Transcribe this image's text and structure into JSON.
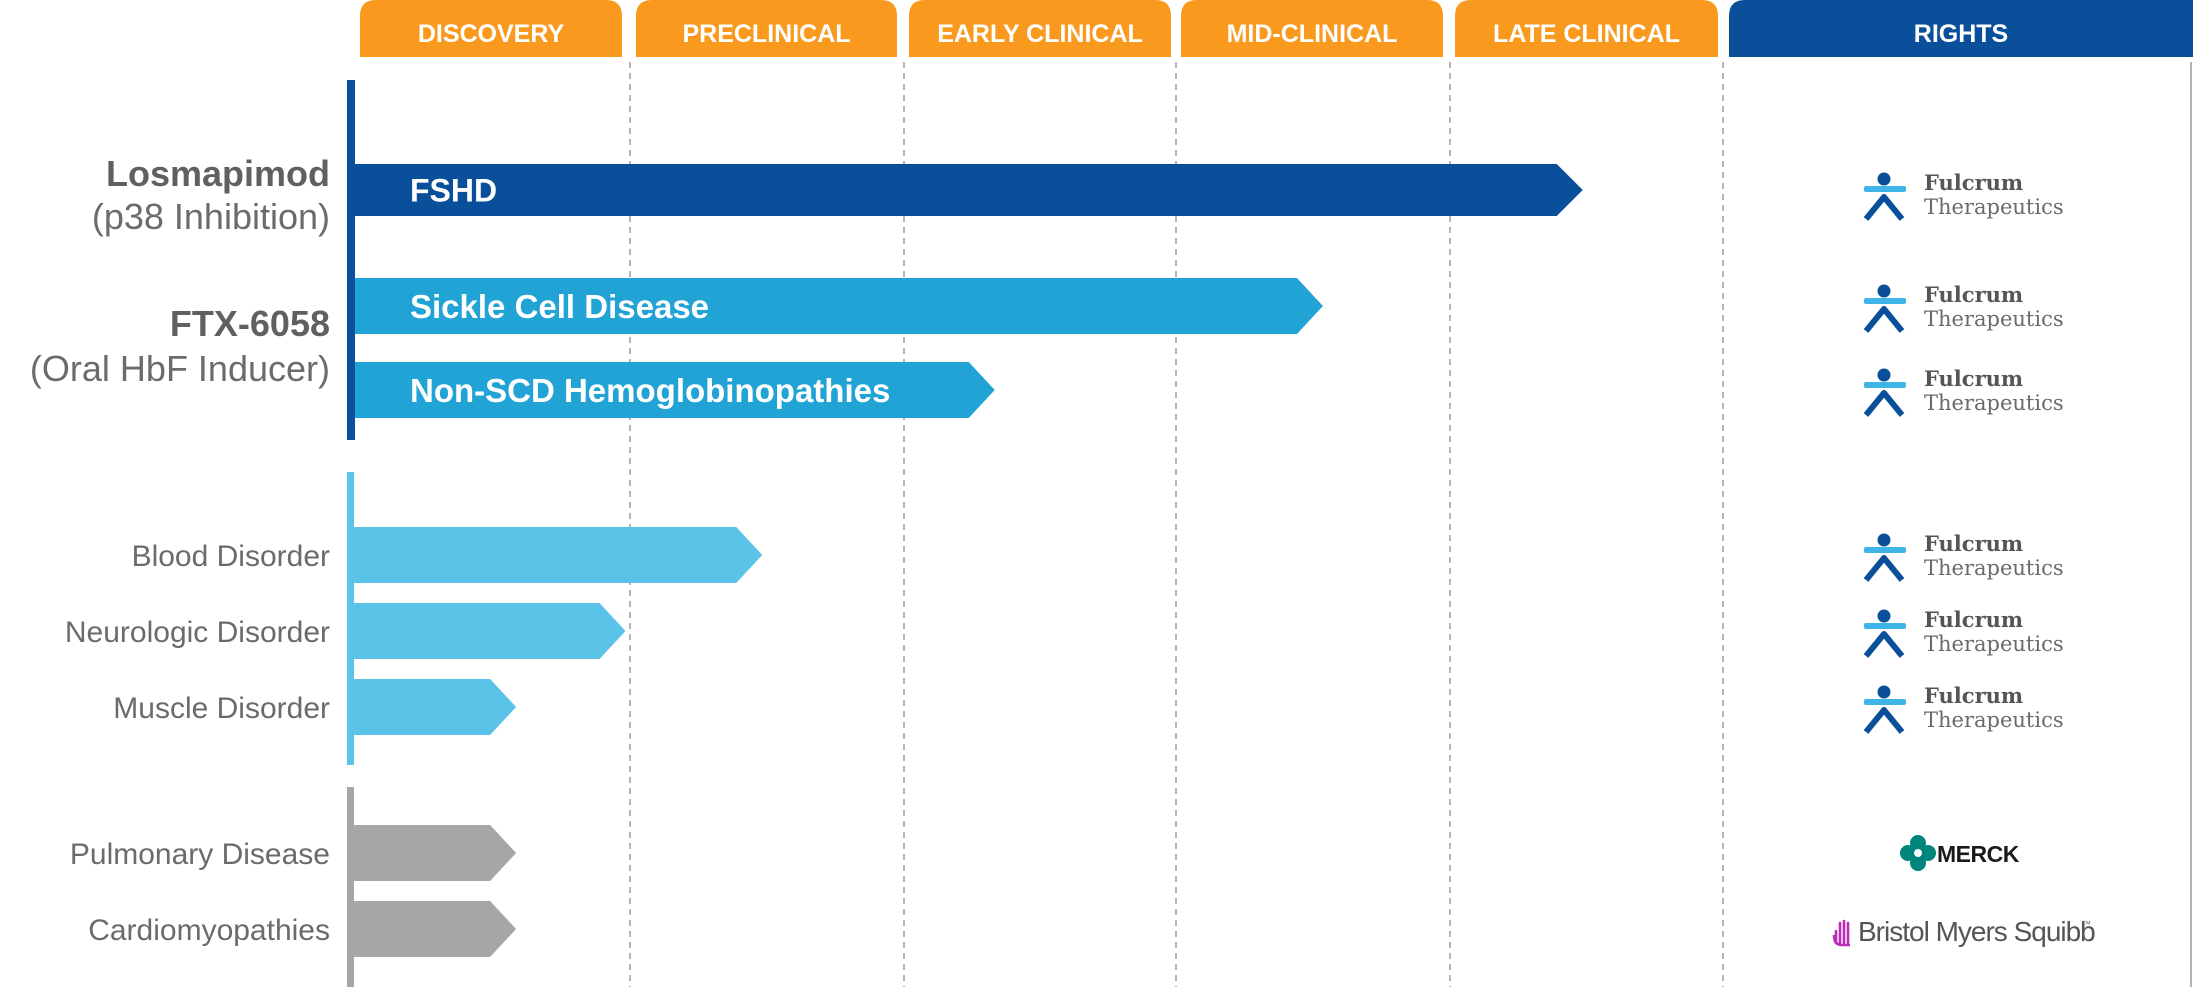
{
  "colors": {
    "phase_header": "#F99A1E",
    "rights_header": "#0A4F9A",
    "lead_bar": "#0A4F9A",
    "ftx_bar": "#22A3D6",
    "pipeline_bar": "#5BC2E8",
    "partnered_bar": "#A6A6A6",
    "label_text": "#6B6B6B",
    "fulcrum_dark": "#0A4F9A",
    "fulcrum_light": "#3FB4E6",
    "merck_teal": "#00857C",
    "bms_magenta": "#BE2BBB"
  },
  "chart_data": {
    "type": "bar",
    "orientation": "horizontal",
    "stages": [
      "DISCOVERY",
      "PRECLINICAL",
      "EARLY CLINICAL",
      "MID-CLINICAL",
      "LATE CLINICAL"
    ],
    "rights_header": "RIGHTS",
    "xlim": [
      0,
      5
    ],
    "groups": [
      {
        "title": "Losmapimod",
        "subtitle": "(p38 Inhibition)",
        "color_key": "lead_bar",
        "rows": [
          {
            "bar_text": "FSHD",
            "label": "",
            "value": 4.5,
            "rights": "fulcrum"
          }
        ]
      },
      {
        "title": "FTX-6058",
        "subtitle": "(Oral HbF Inducer)",
        "color_key": "ftx_bar",
        "rows": [
          {
            "bar_text": "Sickle Cell Disease",
            "label": "",
            "value": 3.55,
            "rights": "fulcrum"
          },
          {
            "bar_text": "Non-SCD Hemoglobinopathies",
            "label": "",
            "value": 2.35,
            "rights": "fulcrum"
          }
        ]
      },
      {
        "title": "",
        "subtitle": "",
        "color_key": "pipeline_bar",
        "rows": [
          {
            "bar_text": "",
            "label": "Blood Disorder",
            "value": 1.5,
            "rights": "fulcrum"
          },
          {
            "bar_text": "",
            "label": "Neurologic Disorder",
            "value": 1.0,
            "rights": "fulcrum"
          },
          {
            "bar_text": "",
            "label": "Muscle Disorder",
            "value": 0.6,
            "rights": "fulcrum"
          }
        ]
      },
      {
        "title": "",
        "subtitle": "",
        "color_key": "partnered_bar",
        "rows": [
          {
            "bar_text": "",
            "label": "Pulmonary Disease",
            "value": 0.6,
            "rights": "merck"
          },
          {
            "bar_text": "",
            "label": "Cardiomyopathies",
            "value": 0.6,
            "rights": "bms"
          }
        ]
      }
    ]
  },
  "logos": {
    "fulcrum": {
      "name": "Fulcrum",
      "sub": "Therapeutics"
    },
    "merck": {
      "name": "MERCK"
    },
    "bms": {
      "name": "Bristol Myers Squibb",
      "mark": "™"
    }
  }
}
